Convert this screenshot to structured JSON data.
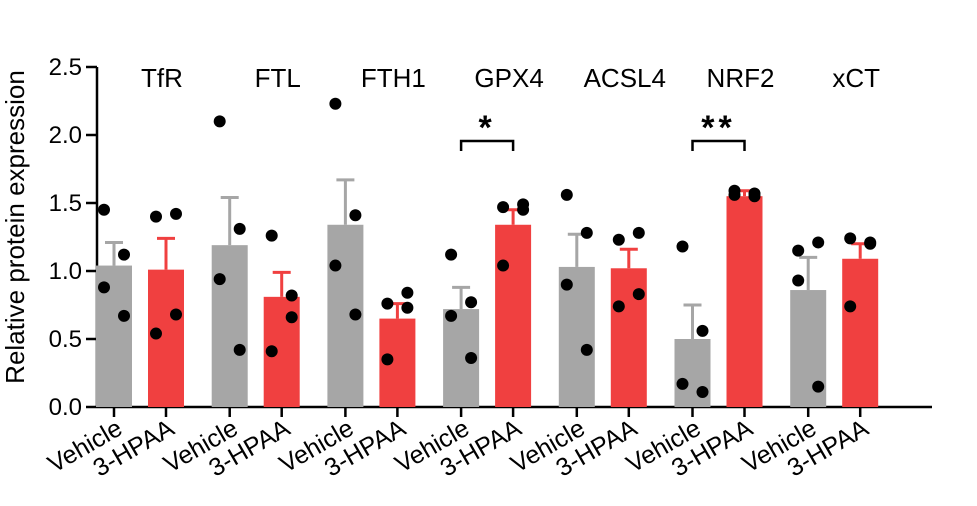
{
  "chart_data": {
    "type": "bar",
    "ylabel": "Relative protein expression",
    "ylim": [
      0,
      2.5
    ],
    "yticks": [
      0.0,
      0.5,
      1.0,
      1.5,
      2.0,
      2.5
    ],
    "ytick_labels": [
      "0.0",
      "0.5",
      "1.0",
      "1.5",
      "2.0",
      "2.5"
    ],
    "conditions": [
      "Vehicle",
      "3-HPAA"
    ],
    "colors": {
      "Vehicle": "#a6a6a6",
      "3-HPAA": "#f04040",
      "points": "#000000"
    },
    "groups": [
      {
        "name": "TfR",
        "bars": [
          {
            "condition": "Vehicle",
            "mean": 1.04,
            "sem": 0.17,
            "points": [
              1.45,
              1.12,
              0.88,
              0.67
            ]
          },
          {
            "condition": "3-HPAA",
            "mean": 1.01,
            "sem": 0.23,
            "points": [
              1.4,
              1.42,
              0.68,
              0.54
            ]
          }
        ]
      },
      {
        "name": "FTL",
        "bars": [
          {
            "condition": "Vehicle",
            "mean": 1.19,
            "sem": 0.35,
            "points": [
              2.1,
              1.31,
              0.94,
              0.42
            ]
          },
          {
            "condition": "3-HPAA",
            "mean": 0.81,
            "sem": 0.18,
            "points": [
              1.26,
              0.82,
              0.66,
              0.41
            ]
          }
        ]
      },
      {
        "name": "FTH1",
        "bars": [
          {
            "condition": "Vehicle",
            "mean": 1.34,
            "sem": 0.33,
            "points": [
              2.23,
              1.41,
              1.04,
              0.68
            ]
          },
          {
            "condition": "3-HPAA",
            "mean": 0.65,
            "sem": 0.11,
            "points": [
              0.76,
              0.84,
              0.73,
              0.35
            ]
          }
        ]
      },
      {
        "name": "GPX4",
        "bars": [
          {
            "condition": "Vehicle",
            "mean": 0.72,
            "sem": 0.16,
            "points": [
              1.12,
              0.77,
              0.67,
              0.36
            ]
          },
          {
            "condition": "3-HPAA",
            "mean": 1.34,
            "sem": 0.11,
            "points": [
              1.47,
              1.49,
              1.45,
              1.04
            ]
          }
        ]
      },
      {
        "name": "ACSL4",
        "bars": [
          {
            "condition": "Vehicle",
            "mean": 1.03,
            "sem": 0.24,
            "points": [
              1.56,
              1.28,
              0.9,
              0.42
            ]
          },
          {
            "condition": "3-HPAA",
            "mean": 1.02,
            "sem": 0.14,
            "points": [
              1.23,
              1.28,
              0.83,
              0.74
            ]
          }
        ]
      },
      {
        "name": "NRF2",
        "bars": [
          {
            "condition": "Vehicle",
            "mean": 0.5,
            "sem": 0.25,
            "points": [
              1.18,
              0.56,
              0.17,
              0.11
            ]
          },
          {
            "condition": "3-HPAA",
            "mean": 1.55,
            "sem": 0.04,
            "points": [
              1.59,
              1.57,
              1.55,
              1.56
            ]
          }
        ]
      },
      {
        "name": "xCT",
        "bars": [
          {
            "condition": "Vehicle",
            "mean": 0.86,
            "sem": 0.24,
            "points": [
              1.15,
              1.21,
              0.93,
              0.15
            ]
          },
          {
            "condition": "3-HPAA",
            "mean": 1.09,
            "sem": 0.11,
            "points": [
              1.24,
              1.2,
              1.21,
              0.74
            ]
          }
        ]
      }
    ],
    "significance": [
      {
        "group": "GPX4",
        "label": "*"
      },
      {
        "group": "NRF2",
        "label": "**"
      }
    ]
  }
}
